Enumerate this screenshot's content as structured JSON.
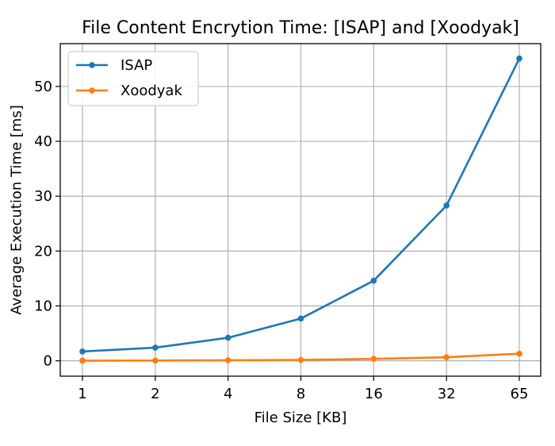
{
  "chart_data": {
    "type": "line",
    "title": "File Content Encrytion Time: [ISAP] and [Xoodyak]",
    "xlabel": "File Size [KB]",
    "ylabel": "Average Execution Time [ms]",
    "categories": [
      "1",
      "2",
      "4",
      "8",
      "16",
      "32",
      "65"
    ],
    "y_ticks": [
      0,
      10,
      20,
      30,
      40,
      50
    ],
    "ylim": [
      -2.8,
      57.8
    ],
    "grid": true,
    "legend_position": "top-left",
    "series": [
      {
        "name": "ISAP",
        "color": "#1f77b4",
        "values": [
          1.7,
          2.4,
          4.2,
          7.7,
          14.6,
          28.3,
          55.1
        ]
      },
      {
        "name": "Xoodyak",
        "color": "#ff7f0e",
        "values": [
          0.03,
          0.05,
          0.1,
          0.15,
          0.35,
          0.65,
          1.3
        ]
      }
    ]
  }
}
